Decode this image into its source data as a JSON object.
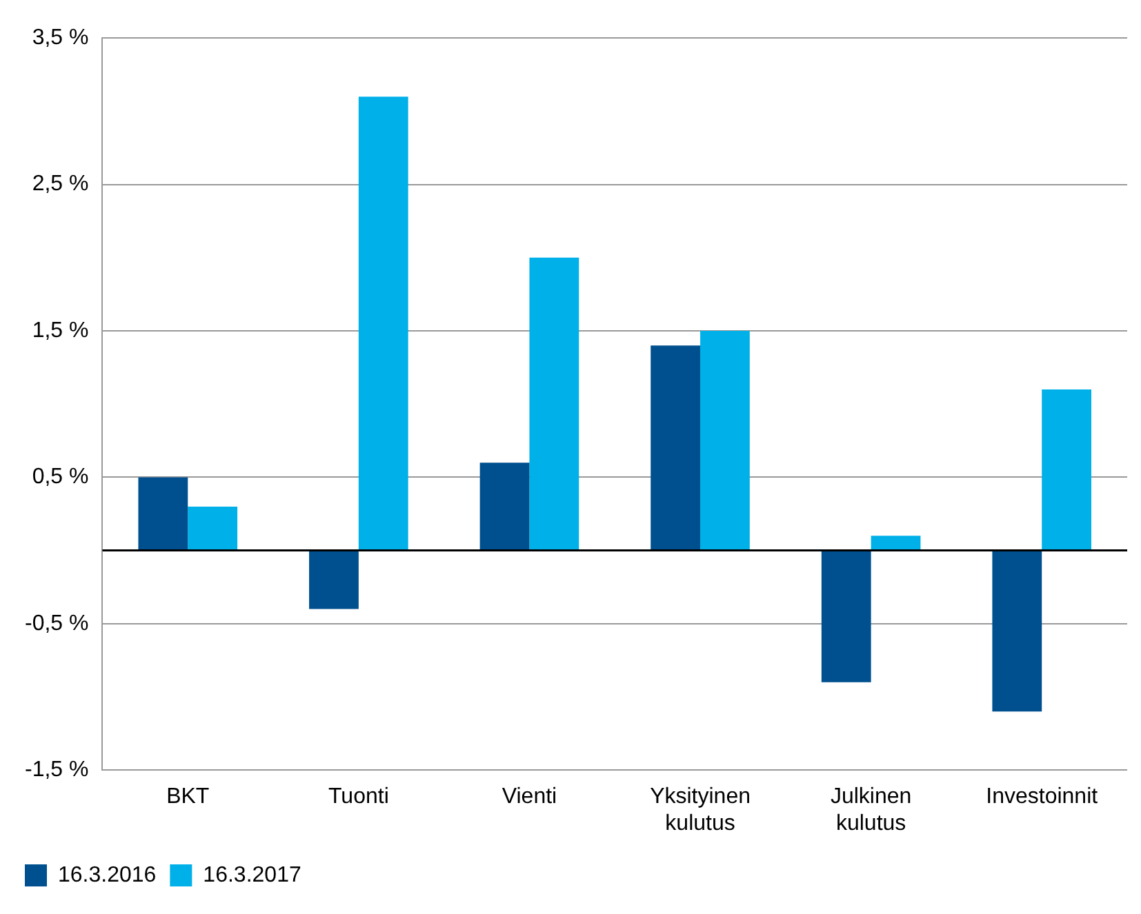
{
  "chart_data": {
    "type": "bar",
    "categories": [
      "BKT",
      "Tuonti",
      "Vienti",
      "Yksityinen kulutus",
      "Julkinen kulutus",
      "Investoinnit"
    ],
    "series": [
      {
        "name": "16.3.2016",
        "color": "#00508f",
        "values": [
          0.5,
          -0.4,
          0.6,
          1.4,
          -0.9,
          -1.1
        ]
      },
      {
        "name": "16.3.2017",
        "color": "#00b1e9",
        "values": [
          0.3,
          3.1,
          2.0,
          1.5,
          0.1,
          1.1
        ]
      }
    ],
    "ylim": [
      -1.5,
      3.5
    ],
    "yticks": [
      {
        "value": -1.5,
        "label": "-1,5 %"
      },
      {
        "value": -0.5,
        "label": "-0,5 %"
      },
      {
        "value": 0.5,
        "label": "0,5 %"
      },
      {
        "value": 1.5,
        "label": "1,5 %"
      },
      {
        "value": 2.5,
        "label": "2,5 %"
      },
      {
        "value": 3.5,
        "label": "3,5 %"
      }
    ],
    "ref_lines": [
      {
        "axis": "y",
        "value": 0,
        "color": "#000000"
      }
    ],
    "grid": "y",
    "legend": "bottom left"
  }
}
